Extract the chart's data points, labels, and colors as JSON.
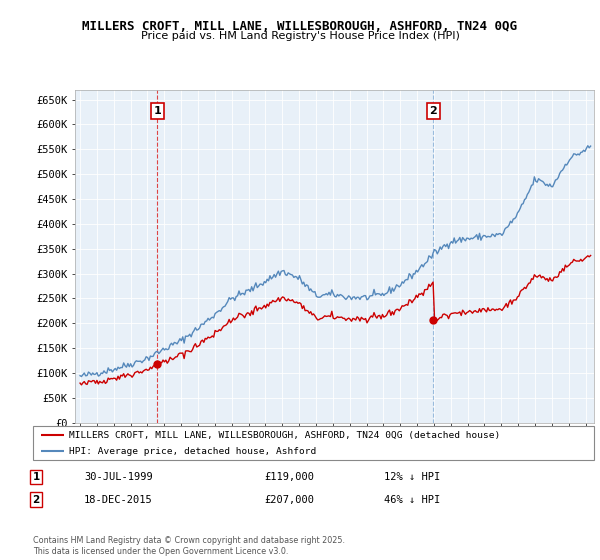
{
  "title1": "MILLERS CROFT, MILL LANE, WILLESBOROUGH, ASHFORD, TN24 0QG",
  "title2": "Price paid vs. HM Land Registry's House Price Index (HPI)",
  "ylabel_ticks": [
    "£0",
    "£50K",
    "£100K",
    "£150K",
    "£200K",
    "£250K",
    "£300K",
    "£350K",
    "£400K",
    "£450K",
    "£500K",
    "£550K",
    "£600K",
    "£650K"
  ],
  "ytick_values": [
    0,
    50000,
    100000,
    150000,
    200000,
    250000,
    300000,
    350000,
    400000,
    450000,
    500000,
    550000,
    600000,
    650000
  ],
  "ylim": [
    0,
    670000
  ],
  "xlim_start": 1994.7,
  "xlim_end": 2025.5,
  "sale1_x": 1999.58,
  "sale1_y": 119000,
  "sale2_x": 2015.97,
  "sale2_y": 207000,
  "legend_line1": "MILLERS CROFT, MILL LANE, WILLESBOROUGH, ASHFORD, TN24 0QG (detached house)",
  "legend_line2": "HPI: Average price, detached house, Ashford",
  "annotation1_label": "1",
  "annotation1_date": "30-JUL-1999",
  "annotation1_price": "£119,000",
  "annotation1_hpi": "12% ↓ HPI",
  "annotation2_label": "2",
  "annotation2_date": "18-DEC-2015",
  "annotation2_price": "£207,000",
  "annotation2_hpi": "46% ↓ HPI",
  "footer": "Contains HM Land Registry data © Crown copyright and database right 2025.\nThis data is licensed under the Open Government Licence v3.0.",
  "line_color_red": "#cc0000",
  "line_color_blue": "#5588bb",
  "vline1_color": "#dd4444",
  "vline2_color": "#99bbdd",
  "plot_bg_color": "#e8f0f8",
  "grid_color": "#ffffff",
  "title_fontsize": 9,
  "subtitle_fontsize": 8,
  "tick_fontsize": 7.5
}
